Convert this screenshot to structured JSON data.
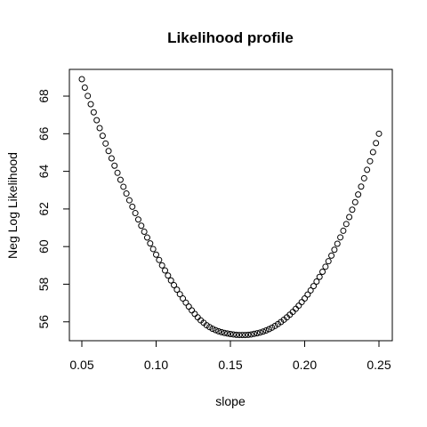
{
  "chart_data": {
    "type": "scatter",
    "title": "Likelihood profile",
    "xlabel": "slope",
    "ylabel": "Neg Log Likelihood",
    "xlim": [
      0.05,
      0.25
    ],
    "ylim": [
      55.8,
      68.9
    ],
    "xticks": [
      0.05,
      0.1,
      0.15,
      0.2,
      0.25
    ],
    "xtick_labels": [
      "0.05",
      "0.10",
      "0.15",
      "0.20",
      "0.25"
    ],
    "yticks": [
      56,
      58,
      60,
      62,
      64,
      66,
      68
    ],
    "ytick_labels": [
      "56",
      "58",
      "60",
      "62",
      "64",
      "66",
      "68"
    ],
    "marker": "open-circle",
    "grid": false,
    "series": [
      {
        "x": [
          0.05,
          0.052,
          0.054,
          0.056,
          0.058,
          0.06,
          0.062,
          0.064,
          0.066,
          0.068,
          0.07,
          0.072,
          0.074,
          0.076,
          0.078,
          0.08,
          0.082,
          0.084,
          0.086,
          0.088,
          0.09,
          0.092,
          0.094,
          0.096,
          0.098,
          0.1,
          0.102,
          0.104,
          0.106,
          0.108,
          0.11,
          0.112,
          0.114,
          0.116,
          0.118,
          0.12,
          0.122,
          0.124,
          0.126,
          0.128,
          0.13,
          0.132,
          0.134,
          0.136,
          0.138,
          0.14,
          0.142,
          0.144,
          0.146,
          0.148,
          0.15,
          0.152,
          0.154,
          0.156,
          0.158,
          0.16,
          0.162,
          0.164,
          0.166,
          0.168,
          0.17,
          0.172,
          0.174,
          0.176,
          0.178,
          0.18,
          0.182,
          0.184,
          0.186,
          0.188,
          0.19,
          0.192,
          0.194,
          0.196,
          0.198,
          0.2,
          0.202,
          0.204,
          0.206,
          0.208,
          0.21,
          0.212,
          0.214,
          0.216,
          0.218,
          0.22,
          0.222,
          0.224,
          0.226,
          0.228,
          0.23,
          0.232,
          0.234,
          0.236,
          0.238,
          0.24,
          0.242,
          0.244,
          0.246,
          0.248,
          0.25
        ],
        "y": [
          68.9,
          68.45,
          68.01,
          67.57,
          67.14,
          66.72,
          66.3,
          65.89,
          65.48,
          65.08,
          64.69,
          64.3,
          63.92,
          63.55,
          63.18,
          62.82,
          62.46,
          62.12,
          61.78,
          61.44,
          61.11,
          60.79,
          60.48,
          60.17,
          59.87,
          59.57,
          59.29,
          59.0,
          58.73,
          58.46,
          58.2,
          57.95,
          57.71,
          57.47,
          57.24,
          57.02,
          56.81,
          56.61,
          56.42,
          56.24,
          56.08,
          55.95,
          55.82,
          55.72,
          55.63,
          55.56,
          55.5,
          55.45,
          55.41,
          55.38,
          55.35,
          55.33,
          55.31,
          55.3,
          55.3,
          55.3,
          55.31,
          55.33,
          55.36,
          55.39,
          55.43,
          55.48,
          55.54,
          55.61,
          55.69,
          55.78,
          55.88,
          55.99,
          56.11,
          56.24,
          56.38,
          56.53,
          56.69,
          56.86,
          57.05,
          57.24,
          57.45,
          57.67,
          57.9,
          58.14,
          58.39,
          58.66,
          58.93,
          59.22,
          59.52,
          59.83,
          60.15,
          60.49,
          60.84,
          61.2,
          61.57,
          61.96,
          62.36,
          62.77,
          63.19,
          63.63,
          64.08,
          64.54,
          65.02,
          65.5,
          66.0
        ]
      }
    ]
  }
}
